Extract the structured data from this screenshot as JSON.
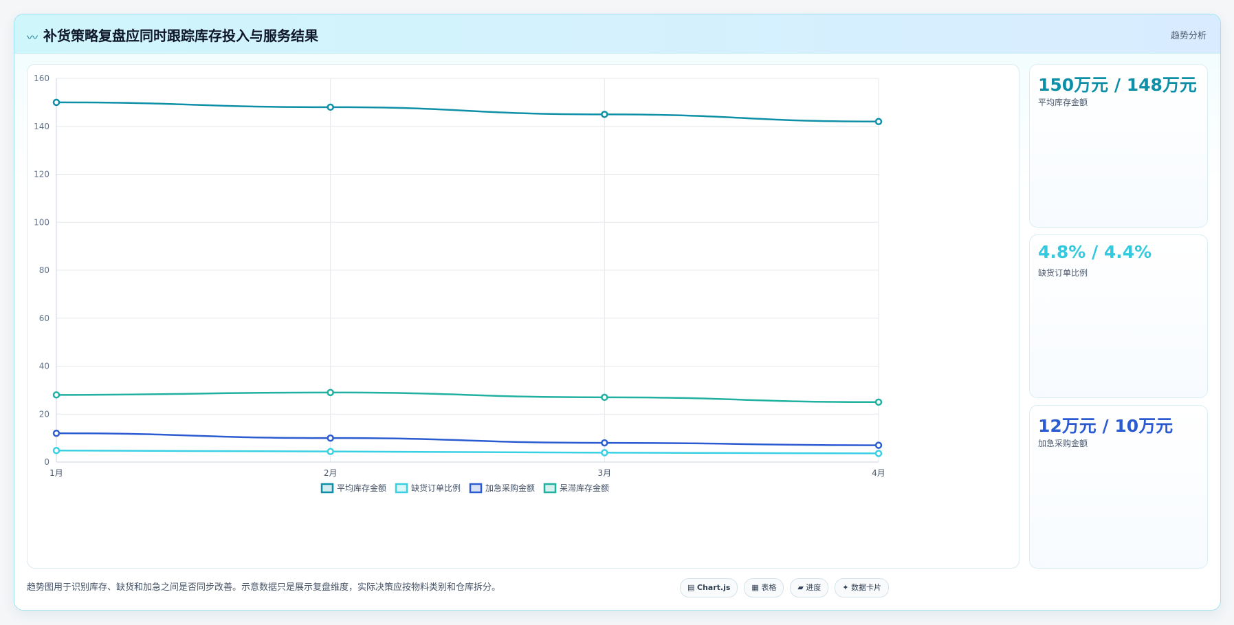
{
  "header": {
    "icon": "chart-trend-icon",
    "title": "补货策略复盘应同时跟踪库存投入与服务结果",
    "tag": "趋势分析"
  },
  "chart_data": {
    "type": "line",
    "categories": [
      "1月",
      "2月",
      "3月",
      "4月"
    ],
    "ylim": [
      0,
      160
    ],
    "yticks": [
      0,
      20,
      40,
      60,
      80,
      100,
      120,
      140,
      160
    ],
    "grid": true,
    "legend": "bottom",
    "series": [
      {
        "name": "平均库存金额",
        "color": "#0e8fa8",
        "values": [
          150,
          148,
          145,
          142
        ]
      },
      {
        "name": "缺货订单比例",
        "color": "#3ad0e4",
        "values": [
          4.8,
          4.4,
          3.9,
          3.6
        ]
      },
      {
        "name": "加急采购金额",
        "color": "#2a5bd1",
        "values": [
          12,
          10,
          8,
          7
        ]
      },
      {
        "name": "呆滞库存金额",
        "color": "#1fb0a0",
        "values": [
          28,
          29,
          27,
          25
        ]
      }
    ]
  },
  "kpis": [
    {
      "value": "150万元 / 148万元",
      "label": "平均库存金额",
      "color": "#0e8fa8"
    },
    {
      "value": "4.8% / 4.4%",
      "label": "缺货订单比例",
      "color": "#33c9df"
    },
    {
      "value": "12万元 / 10万元",
      "label": "加急采购金额",
      "color": "#2a5bd1"
    }
  ],
  "footnote": "趋势图用于识别库存、缺货和加急之间是否同步改善。示意数据只是展示复盘维度，实际决策应按物料类别和仓库拆分。",
  "chips": [
    {
      "icon": "▤",
      "label": "Chart.js"
    },
    {
      "icon": "▦",
      "label": "表格"
    },
    {
      "icon": "▰",
      "label": "进度"
    },
    {
      "icon": "✦",
      "label": "数据卡片"
    }
  ]
}
